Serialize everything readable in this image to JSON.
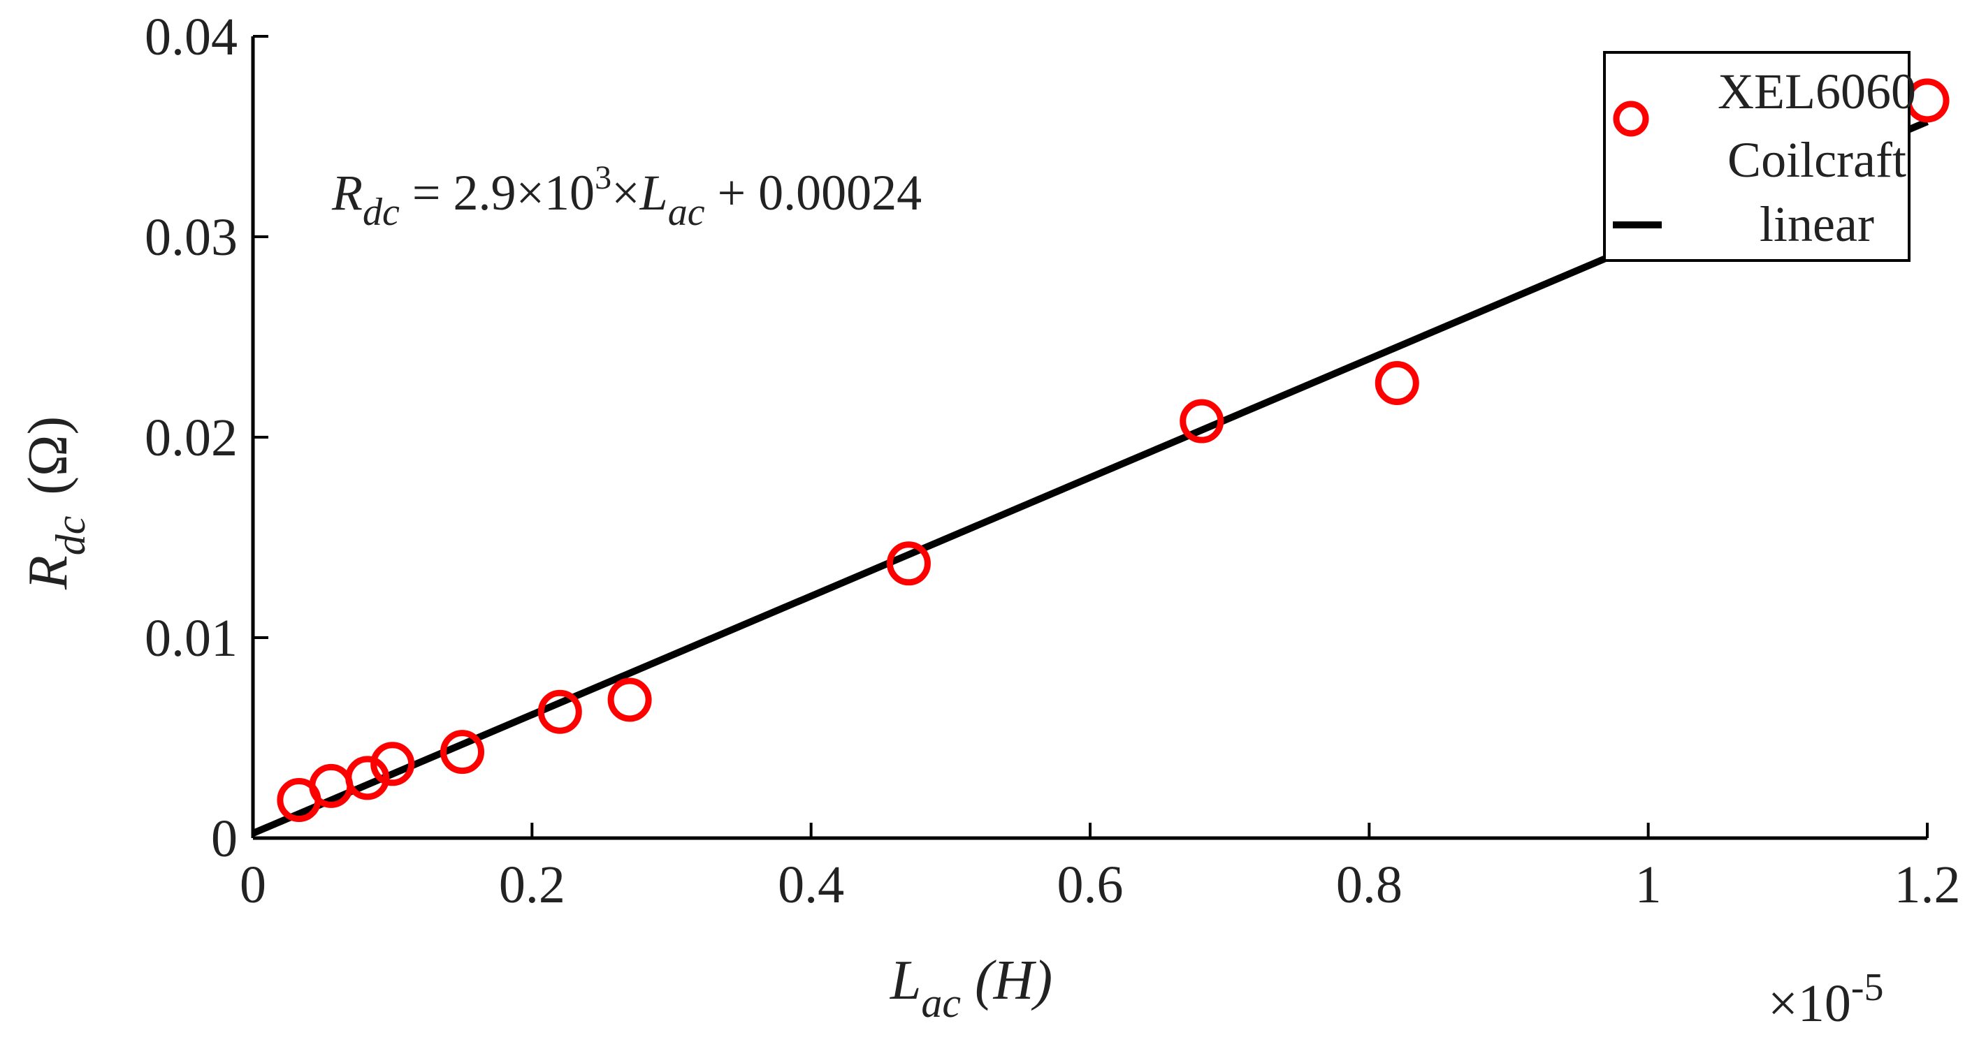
{
  "chart_data": {
    "type": "scatter",
    "xlabel": {
      "main": "L",
      "sub": "ac",
      "unit": " (H)"
    },
    "ylabel": {
      "main": "R",
      "sub": "dc",
      "unit": "(Ω)"
    },
    "x_exponent": {
      "prefix": "×10",
      "power": "-5"
    },
    "xlim": [
      0,
      1.2
    ],
    "ylim": [
      0,
      0.04
    ],
    "x_ticks": [
      0,
      0.2,
      0.4,
      0.6,
      0.8,
      1,
      1.2
    ],
    "x_tick_labels": [
      "0",
      "0.2",
      "0.4",
      "0.6",
      "0.8",
      "1",
      "1.2"
    ],
    "y_ticks": [
      0,
      0.01,
      0.02,
      0.03,
      0.04
    ],
    "y_tick_labels": [
      "0",
      "0.01",
      "0.02",
      "0.03",
      "0.04"
    ],
    "grid": false,
    "legend_position": "top-right",
    "annotation": {
      "lhs_main": "R",
      "lhs_sub": "dc",
      "mid": " = 2.9×10",
      "power": "3",
      "times": "×",
      "rhs_main": "L",
      "rhs_sub": "ac",
      "tail": " + 0.00024"
    },
    "series": [
      {
        "name": "XEL6060 Coilcraft",
        "legend_lines": [
          "XEL6060",
          "Coilcraft"
        ],
        "type": "scatter",
        "marker": "circle",
        "color": "#ff0000",
        "points": [
          [
            0.033,
            0.0019
          ],
          [
            0.056,
            0.0026
          ],
          [
            0.082,
            0.003
          ],
          [
            0.1,
            0.0037
          ],
          [
            0.15,
            0.0043
          ],
          [
            0.22,
            0.0063
          ],
          [
            0.27,
            0.0069
          ],
          [
            0.47,
            0.0137
          ],
          [
            0.68,
            0.0208
          ],
          [
            0.82,
            0.0227
          ],
          [
            1.2,
            0.0368
          ]
        ]
      },
      {
        "name": "linear",
        "type": "line",
        "color": "#000000",
        "points": [
          [
            0,
            0.00024
          ],
          [
            1.2,
            0.03574
          ]
        ]
      }
    ]
  }
}
